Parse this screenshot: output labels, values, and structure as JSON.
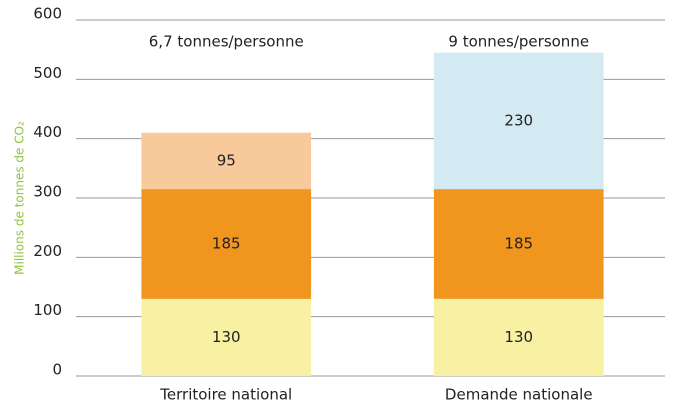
{
  "chart_data": {
    "type": "stacked-bar",
    "y_label": "Millions de tonnes de CO₂",
    "categories": [
      "Territoire national",
      "Demande nationale"
    ],
    "annotations": [
      "6,7 tonnes/personne",
      "9 tonnes/personne"
    ],
    "series": [
      {
        "color": "#f8f1a3",
        "values": [
          130,
          130
        ]
      },
      {
        "color": "#f0961e",
        "values": [
          185,
          185
        ]
      },
      {
        "color": "#f8c99b",
        "values": [
          95,
          null
        ]
      },
      {
        "color": "#d4eaf2",
        "values": [
          null,
          230
        ]
      }
    ],
    "ylim": [
      0,
      600
    ],
    "yticks": [
      0,
      100,
      200,
      300,
      400,
      500,
      600
    ],
    "grid": true
  }
}
